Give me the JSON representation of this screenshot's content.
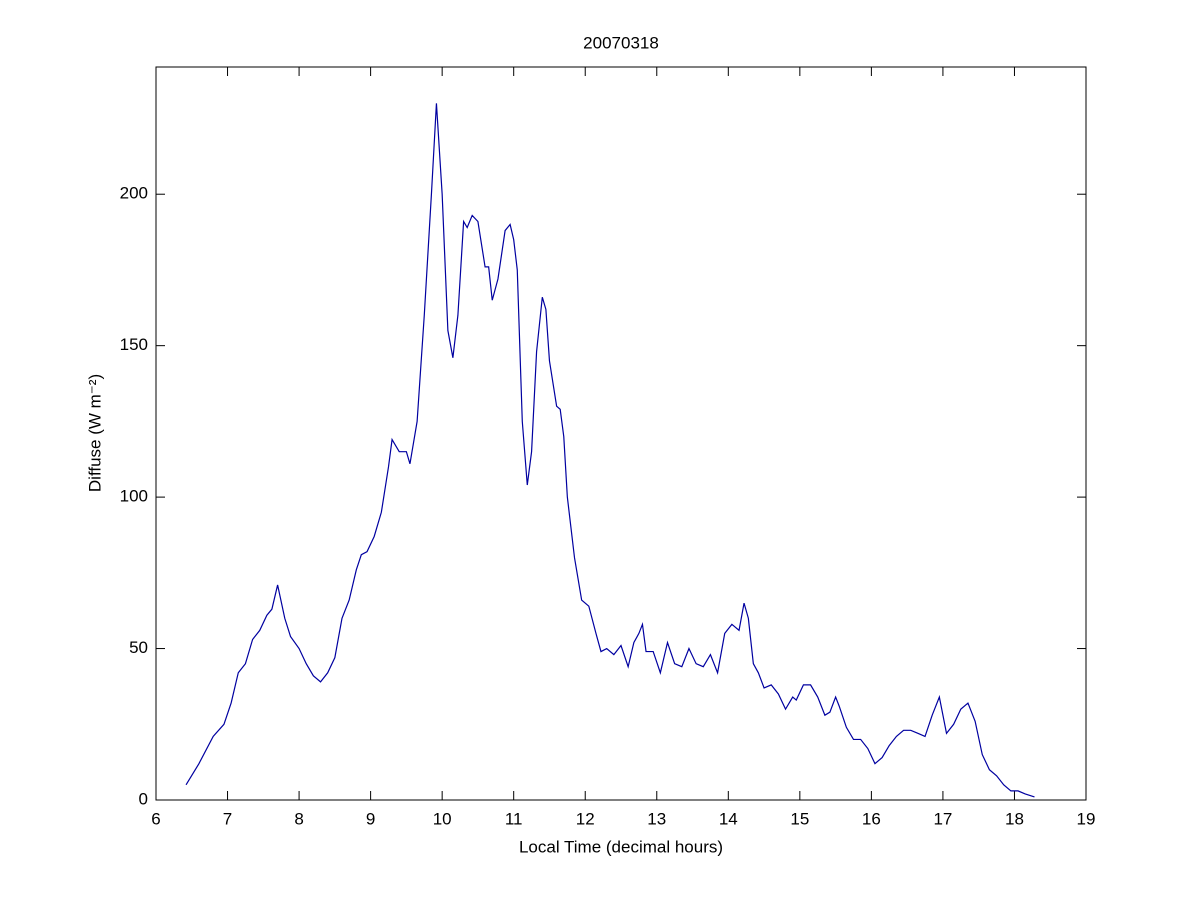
{
  "chart_data": {
    "type": "line",
    "title": "20070318",
    "xlabel": "Local Time (decimal hours)",
    "ylabel": "Diffuse (W m⁻²)",
    "x": [
      6.42,
      6.6,
      6.8,
      6.95,
      7.05,
      7.15,
      7.25,
      7.35,
      7.45,
      7.55,
      7.62,
      7.7,
      7.8,
      7.88,
      8.0,
      8.1,
      8.2,
      8.3,
      8.4,
      8.5,
      8.6,
      8.7,
      8.8,
      8.87,
      8.95,
      9.05,
      9.15,
      9.25,
      9.3,
      9.4,
      9.5,
      9.55,
      9.65,
      9.75,
      9.85,
      9.92,
      10.0,
      10.08,
      10.15,
      10.22,
      10.3,
      10.35,
      10.42,
      10.5,
      10.6,
      10.65,
      10.7,
      10.78,
      10.88,
      10.95,
      11.0,
      11.05,
      11.12,
      11.19,
      11.25,
      11.32,
      11.4,
      11.45,
      11.5,
      11.6,
      11.65,
      11.7,
      11.75,
      11.85,
      11.95,
      12.05,
      12.15,
      12.22,
      12.3,
      12.4,
      12.5,
      12.6,
      12.68,
      12.75,
      12.8,
      12.85,
      12.95,
      13.05,
      13.15,
      13.25,
      13.35,
      13.45,
      13.55,
      13.65,
      13.75,
      13.85,
      13.95,
      14.05,
      14.15,
      14.22,
      14.28,
      14.35,
      14.42,
      14.5,
      14.6,
      14.7,
      14.8,
      14.9,
      14.95,
      15.05,
      15.15,
      15.25,
      15.35,
      15.42,
      15.5,
      15.55,
      15.65,
      15.75,
      15.85,
      15.95,
      16.05,
      16.15,
      16.25,
      16.35,
      16.45,
      16.55,
      16.65,
      16.75,
      16.85,
      16.95,
      17.05,
      17.15,
      17.25,
      17.35,
      17.45,
      17.55,
      17.65,
      17.75,
      17.85,
      17.95,
      18.05,
      18.15,
      18.28
    ],
    "series": [
      {
        "color": "#0000a0",
        "values": [
          5,
          12,
          21,
          25,
          32,
          42,
          45,
          53,
          56,
          61,
          63,
          71,
          60,
          54,
          50,
          45,
          41,
          39,
          42,
          47,
          60,
          66,
          76,
          81,
          82,
          87,
          95,
          110,
          119,
          115,
          115,
          111,
          125,
          160,
          200,
          230,
          200,
          155,
          146,
          160,
          191,
          189,
          193,
          191,
          176,
          176,
          165,
          172,
          188,
          190,
          185,
          175,
          125,
          104,
          115,
          148,
          166,
          162,
          145,
          130,
          129,
          120,
          100,
          80,
          66,
          64,
          55,
          49,
          50,
          48,
          51,
          44,
          52,
          55,
          58,
          49,
          49,
          42,
          52,
          45,
          44,
          50,
          45,
          44,
          48,
          42,
          55,
          58,
          56,
          65,
          60,
          45,
          42,
          37,
          38,
          35,
          30,
          34,
          33,
          38,
          38,
          34,
          28,
          29,
          34,
          31,
          24,
          20,
          20,
          17,
          12,
          14,
          18,
          21,
          23,
          23,
          22,
          21,
          28,
          34,
          22,
          25,
          30,
          32,
          26,
          15,
          10,
          8,
          5,
          3,
          3,
          2,
          1
        ]
      }
    ],
    "xlim": [
      6,
      19
    ],
    "xticks": [
      6,
      7,
      8,
      9,
      10,
      11,
      12,
      13,
      14,
      15,
      16,
      17,
      18,
      19
    ],
    "ylim": [
      0,
      242
    ],
    "yticks": [
      0,
      50,
      100,
      150,
      200
    ]
  }
}
